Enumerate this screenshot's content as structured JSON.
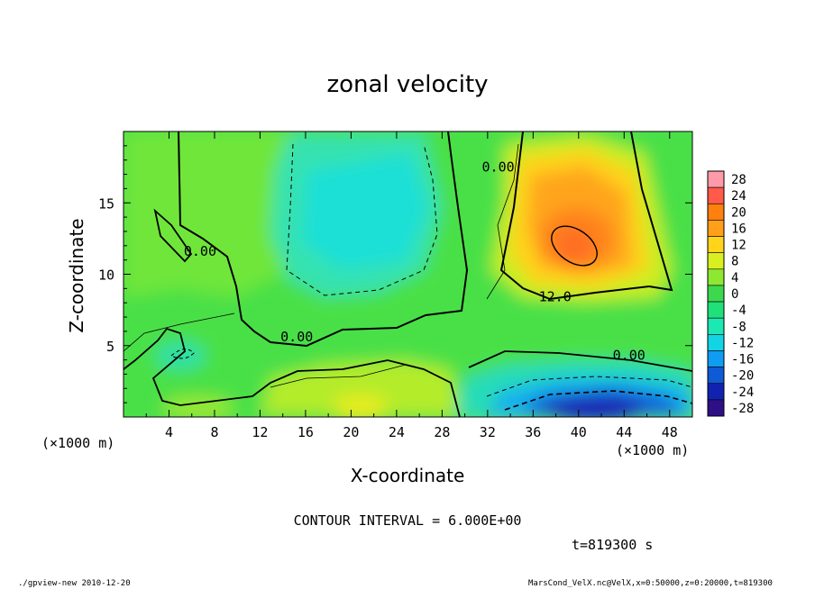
{
  "chart_data": {
    "type": "heatmap",
    "title": "zonal velocity",
    "xlabel": "X-coordinate",
    "ylabel": "Z-coordinate",
    "x_unit": "(×1000 m)",
    "y_unit": "(×1000 m)",
    "xlim": [
      0,
      50
    ],
    "ylim": [
      0,
      20
    ],
    "x_ticks": [
      4,
      8,
      12,
      16,
      20,
      24,
      28,
      32,
      36,
      40,
      44,
      48
    ],
    "y_ticks": [
      5,
      10,
      15
    ],
    "colorbar": {
      "levels": [
        28,
        24,
        20,
        16,
        12,
        8,
        4,
        0,
        -4,
        -8,
        -12,
        -16,
        -20,
        -24,
        -28
      ],
      "colors": [
        "#ff9aa8",
        "#ff5a4a",
        "#ff7f0f",
        "#ff9f1a",
        "#ffd41a",
        "#d8f020",
        "#8ee832",
        "#3ed84e",
        "#20e07a",
        "#1ce8b4",
        "#12d4e4",
        "#0f9cf2",
        "#0f5ad6",
        "#1222b0",
        "#2e0f86"
      ]
    },
    "contour_labels": [
      {
        "text": "0.00",
        "x": 5.3,
        "z": 11.3
      },
      {
        "text": "0.00",
        "x": 31.5,
        "z": 17.2
      },
      {
        "text": "0.00",
        "x": 13.8,
        "z": 5.3
      },
      {
        "text": "0.00",
        "x": 43.0,
        "z": 4.0
      },
      {
        "text": "12.0",
        "x": 36.5,
        "z": 8.1
      }
    ],
    "annotations": [
      "CONTOUR INTERVAL = 6.000E+00",
      "t=819300 s"
    ]
  },
  "footer": {
    "left": "./gpview-new  2010-12-20",
    "right": "MarsCond_VelX.nc@VelX,x=0:50000,z=0:20000,t=819300"
  }
}
